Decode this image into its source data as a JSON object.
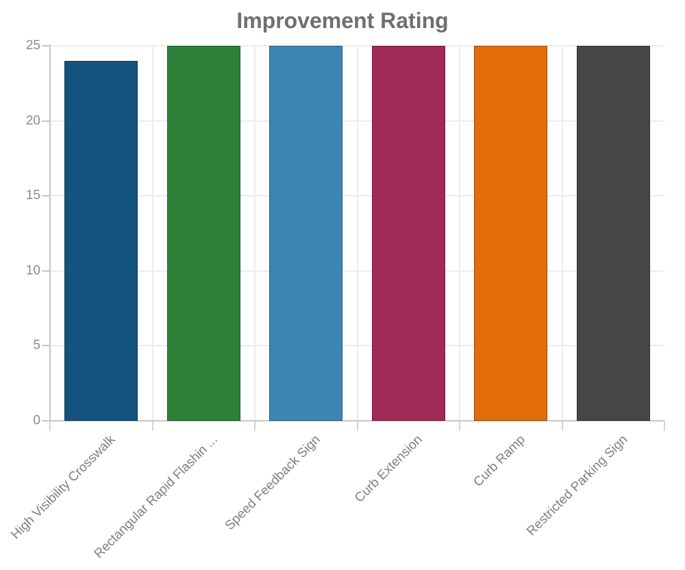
{
  "chart_data": {
    "type": "bar",
    "title": "Improvement Rating",
    "categories": [
      "High Visibility Crosswalk",
      "Rectangular Rapid Flashin ...",
      "Speed Feedback Sign",
      "Curb Extension",
      "Curb Ramp",
      "Restricted Parking Sign"
    ],
    "values": [
      24,
      25,
      25,
      25,
      25,
      25
    ],
    "bar_colors": [
      "#14537f",
      "#2e8038",
      "#3d86b4",
      "#a12a57",
      "#e26b0a",
      "#464646"
    ],
    "xlabel": "",
    "ylabel": "",
    "ylim": [
      0,
      25
    ],
    "yticks": [
      0,
      5,
      10,
      15,
      20,
      25
    ],
    "grid": true,
    "legend_position": "none",
    "theme": {
      "title_color": "#6f6f6f",
      "ytick_label_color": "#8a8a8a",
      "xtick_label_color": "#7f7f7f",
      "gridline_color": "#ebebeb",
      "axis_line_color": "#c6c6c6",
      "background_color": "#ffffff"
    }
  }
}
